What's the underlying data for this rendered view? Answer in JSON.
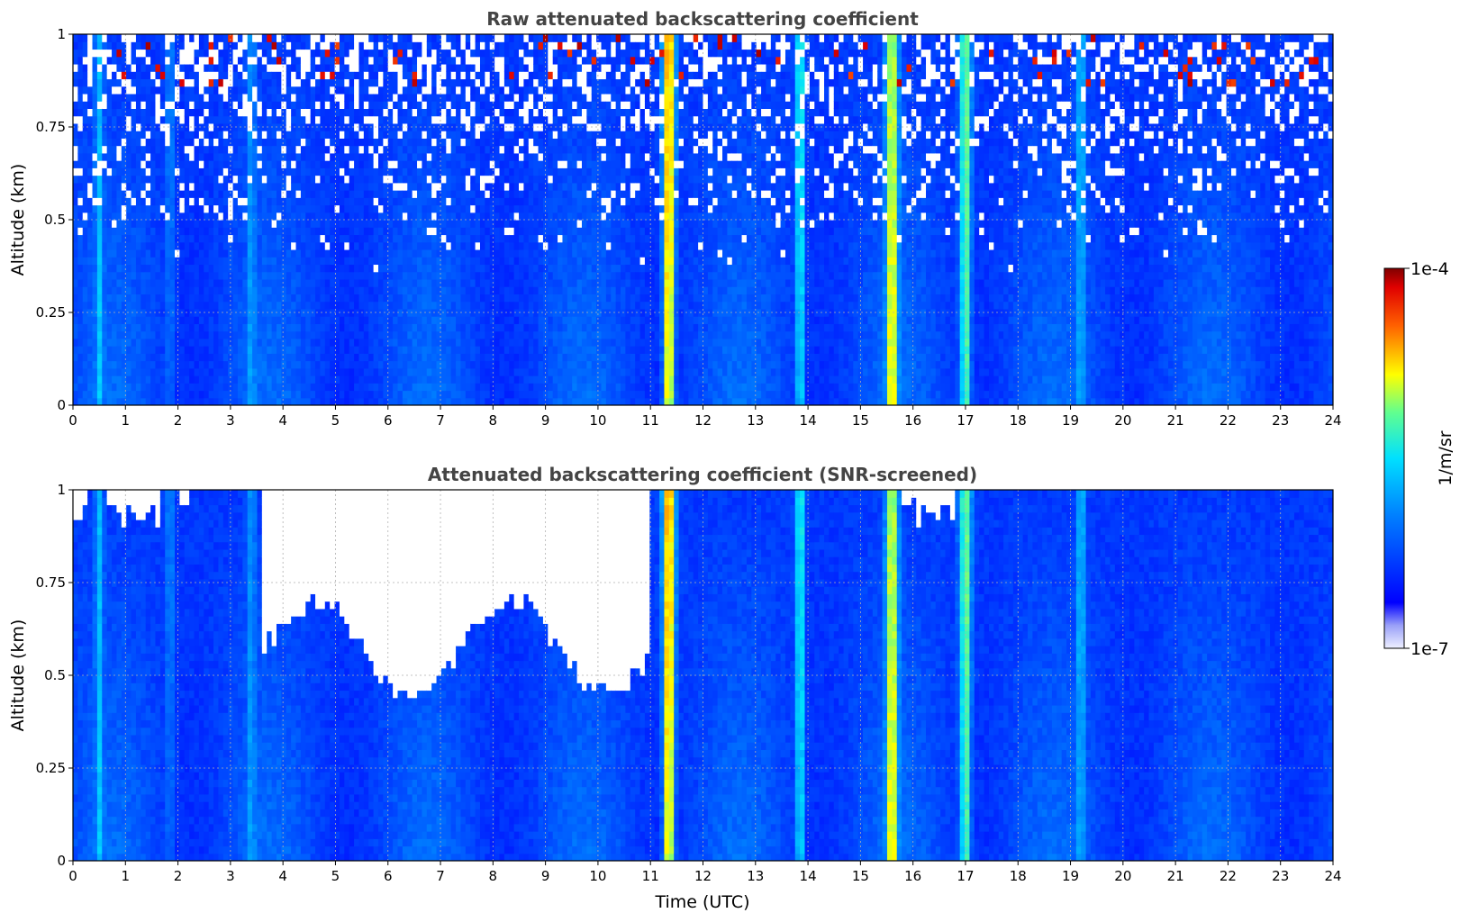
{
  "chart_data": [
    {
      "type": "heatmap",
      "title": "Raw attenuated backscattering coefficient",
      "xlabel": "",
      "ylabel": "Altitude (km)",
      "xlim": [
        0,
        24
      ],
      "ylim": [
        0,
        1
      ],
      "x_ticks": [
        "0",
        "1",
        "2",
        "3",
        "4",
        "5",
        "6",
        "7",
        "8",
        "9",
        "10",
        "11",
        "12",
        "13",
        "14",
        "15",
        "16",
        "17",
        "18",
        "19",
        "20",
        "21",
        "22",
        "23",
        "24"
      ],
      "y_ticks": [
        "0",
        "0.25",
        "0.5",
        "0.75",
        "1"
      ],
      "grid": true,
      "screened": false
    },
    {
      "type": "heatmap",
      "title": "Attenuated backscattering coefficient (SNR-screened)",
      "xlabel": "Time (UTC)",
      "ylabel": "Altitude (km)",
      "xlim": [
        0,
        24
      ],
      "ylim": [
        0,
        1
      ],
      "x_ticks": [
        "0",
        "1",
        "2",
        "3",
        "4",
        "5",
        "6",
        "7",
        "8",
        "9",
        "10",
        "11",
        "12",
        "13",
        "14",
        "15",
        "16",
        "17",
        "18",
        "19",
        "20",
        "21",
        "22",
        "23",
        "24"
      ],
      "y_ticks": [
        "0",
        "0.25",
        "0.5",
        "0.75",
        "1"
      ],
      "grid": true,
      "screened": true
    }
  ],
  "colorbar": {
    "label": "1/m/sr",
    "min_label": "1e-7",
    "max_label": "1e-4",
    "scale": "log",
    "colormap": "jet"
  },
  "features": {
    "strong_plumes_utc": [
      11.35,
      15.6,
      17.0
    ],
    "moderate_plumes_utc": [
      13.85,
      19.2,
      1.85,
      3.4,
      0.5
    ],
    "clear_top_window_utc": [
      3.5,
      11.0
    ]
  }
}
